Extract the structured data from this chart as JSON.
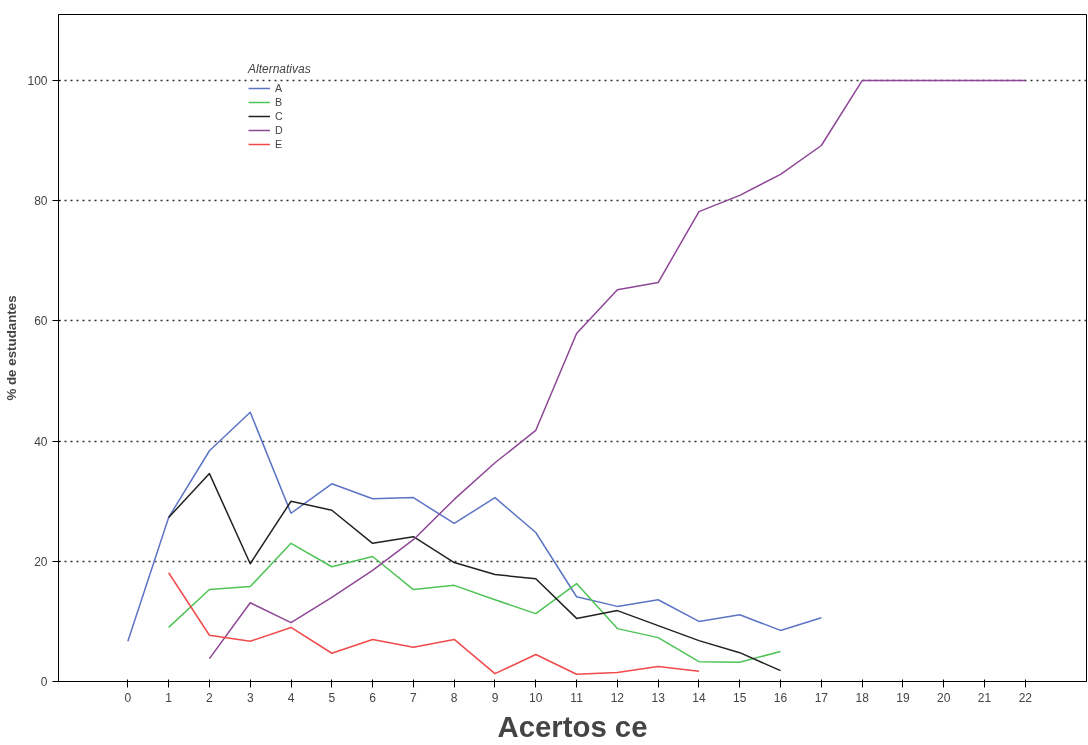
{
  "chart_data": {
    "type": "line",
    "xlabel": "Acertos ce",
    "ylabel": "% de estudantes",
    "legend_title": "Alternativas",
    "legend": "top left",
    "grid": "y",
    "line_style": "solid",
    "xlim": [
      -1.7,
      23.5
    ],
    "ylim": [
      0,
      111
    ],
    "xticks": [
      0,
      1,
      2,
      3,
      4,
      5,
      6,
      7,
      8,
      9,
      10,
      11,
      12,
      13,
      14,
      15,
      16,
      17,
      18,
      19,
      20,
      21,
      22
    ],
    "yticks": [
      0,
      20,
      40,
      60,
      80,
      100
    ],
    "series": [
      {
        "name": "A",
        "color": "#5b74c4",
        "x": [
          0,
          1,
          2,
          3,
          4,
          5,
          6,
          7,
          8,
          9,
          10,
          11,
          12,
          13,
          14,
          15,
          16,
          17
        ],
        "values": [
          6.7,
          27.3,
          38.4,
          44.8,
          28,
          32.9,
          30.4,
          30.6,
          26.3,
          30.6,
          24.8,
          14.1,
          12.5,
          13.6,
          10,
          11.1,
          8.5,
          10.6
        ]
      },
      {
        "name": "B",
        "color": "#4fc456",
        "x": [
          1,
          2,
          3,
          4,
          5,
          6,
          7,
          8,
          9,
          10,
          11,
          12,
          13,
          14,
          15,
          16
        ],
        "values": [
          9,
          15.3,
          15.8,
          23,
          19.1,
          20.8,
          15.3,
          16,
          13.6,
          11.3,
          16.3,
          8.8,
          7.3,
          3.3,
          3.2,
          5
        ]
      },
      {
        "name": "C",
        "color": "#222222",
        "x": [
          1,
          2,
          3,
          4,
          5,
          6,
          7,
          8,
          9,
          10,
          11,
          12,
          13,
          14,
          15,
          16
        ],
        "values": [
          27.3,
          34.6,
          19.6,
          30,
          28.5,
          23,
          24.1,
          19.8,
          17.8,
          17.1,
          10.5,
          11.8,
          9.3,
          6.8,
          4.8,
          1.8
        ]
      },
      {
        "name": "D",
        "color": "#8e4796",
        "x": [
          2,
          3,
          4,
          5,
          6,
          7,
          8,
          9,
          10,
          11,
          12,
          13,
          14,
          15,
          16,
          17,
          18,
          19,
          20,
          21,
          22
        ],
        "values": [
          3.8,
          13.1,
          9.8,
          14,
          18.5,
          23.6,
          30.3,
          36.4,
          41.8,
          57.9,
          65.2,
          66.4,
          78.2,
          80.9,
          84.4,
          89.2,
          100,
          100,
          100,
          100,
          100
        ]
      },
      {
        "name": "E",
        "color": "#f04a4a",
        "x": [
          1,
          2,
          3,
          4,
          5,
          6,
          7,
          8,
          9,
          10,
          11,
          12,
          13,
          14
        ],
        "values": [
          18.1,
          7.7,
          6.7,
          9,
          4.7,
          7,
          5.7,
          7,
          1.3,
          4.5,
          1.2,
          1.5,
          2.5,
          1.7
        ]
      }
    ]
  }
}
